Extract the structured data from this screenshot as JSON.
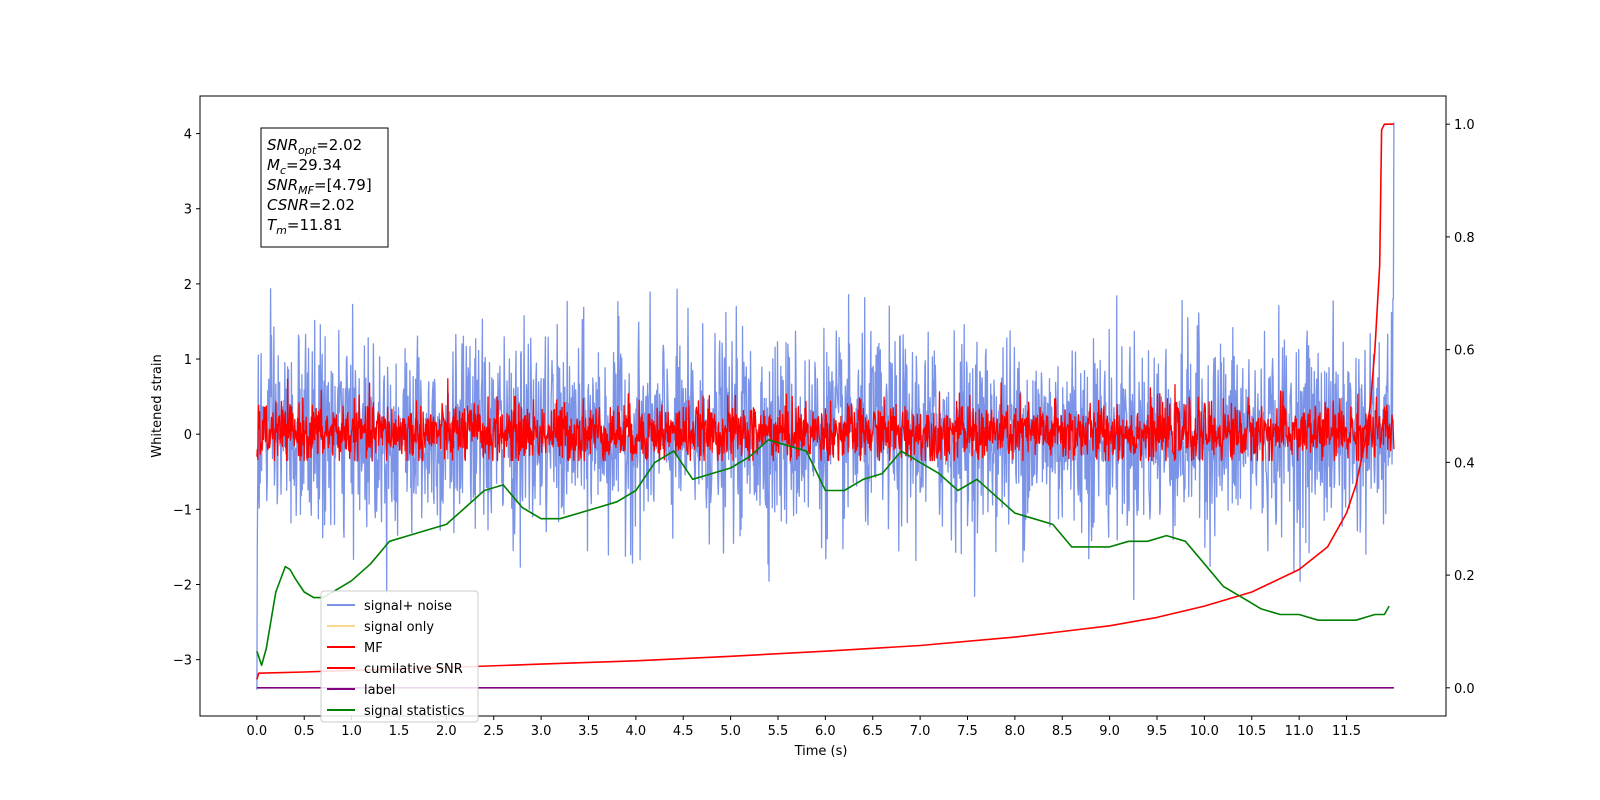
{
  "chart_data": {
    "type": "line",
    "xlabel": "Time (s)",
    "ylabel": "Whitened strain",
    "xlim": [
      -0.6,
      12.55
    ],
    "ylim": [
      -3.75,
      4.5
    ],
    "y2lim": [
      -0.05,
      1.05
    ],
    "xticks": [
      "0.0",
      "0.5",
      "1.0",
      "1.5",
      "2.0",
      "2.5",
      "3.0",
      "3.5",
      "4.0",
      "4.5",
      "5.0",
      "5.5",
      "6.0",
      "6.5",
      "7.0",
      "7.5",
      "8.0",
      "8.5",
      "9.0",
      "9.5",
      "10.0",
      "10.5",
      "11.0",
      "11.5"
    ],
    "yticks": [
      "−3",
      "−2",
      "−1",
      "0",
      "1",
      "2",
      "3",
      "4"
    ],
    "y2ticks": [
      "0.0",
      "0.2",
      "0.4",
      "0.6",
      "0.8",
      "1.0"
    ],
    "stats_box": [
      {
        "sym": "SNR",
        "sub": "opt",
        "value": "=2.02"
      },
      {
        "sym": "M",
        "sub": "c",
        "value": "=29.34"
      },
      {
        "sym": "SNR",
        "sub": "MF",
        "value": "=[4.79]"
      },
      {
        "sym": "CSNR",
        "sub": "",
        "value": "=2.02"
      },
      {
        "sym": "T",
        "sub": "m",
        "value": "=11.81"
      }
    ],
    "legend": {
      "placement": "lower-left",
      "entries": [
        {
          "label": "signal+ noise",
          "color": "#7b94e8"
        },
        {
          "label": "signal only",
          "color": "#f9d78c"
        },
        {
          "label": "MF",
          "color": "#ff0000"
        },
        {
          "label": "cumilative SNR",
          "color": "#ff0000"
        },
        {
          "label": "label",
          "color": "#800080"
        },
        {
          "label": "signal statistics",
          "color": "#008000"
        }
      ]
    },
    "series": [
      {
        "name": "signal+ noise",
        "axis": "left",
        "color": "#7b94e8",
        "pattern": "noise",
        "t_range": [
          0,
          12
        ],
        "approx_std": 0.65,
        "end_spike": 4.15
      },
      {
        "name": "MF",
        "axis": "left",
        "color": "#ff0000",
        "pattern": "noise",
        "t_range": [
          0,
          12
        ],
        "approx_std": 0.2,
        "start_value": -0.3
      },
      {
        "name": "cumilative SNR",
        "axis": "right",
        "color": "#ff0000",
        "x": [
          0.0,
          0.02,
          0.5,
          1.0,
          2.0,
          3.0,
          4.0,
          5.0,
          6.0,
          7.0,
          8.0,
          8.5,
          9.0,
          9.5,
          10.0,
          10.5,
          11.0,
          11.3,
          11.5,
          11.6,
          11.7,
          11.75,
          11.8,
          11.85,
          11.87,
          11.9,
          11.95,
          12.0
        ],
        "values": [
          0.015,
          0.026,
          0.028,
          0.031,
          0.036,
          0.042,
          0.048,
          0.056,
          0.065,
          0.075,
          0.09,
          0.1,
          0.11,
          0.125,
          0.145,
          0.17,
          0.21,
          0.25,
          0.31,
          0.36,
          0.44,
          0.5,
          0.6,
          0.75,
          0.99,
          1.0,
          1.0,
          1.0
        ]
      },
      {
        "name": "label",
        "axis": "right",
        "color": "#800080",
        "x": [
          0,
          12
        ],
        "values": [
          0.0,
          0.0
        ]
      },
      {
        "name": "signal statistics",
        "axis": "right",
        "color": "#008000",
        "x": [
          0.0,
          0.05,
          0.1,
          0.2,
          0.3,
          0.35,
          0.4,
          0.5,
          0.6,
          0.7,
          0.8,
          0.9,
          1.0,
          1.2,
          1.4,
          1.6,
          1.8,
          2.0,
          2.2,
          2.4,
          2.6,
          2.8,
          3.0,
          3.2,
          3.4,
          3.6,
          3.8,
          4.0,
          4.2,
          4.4,
          4.6,
          4.8,
          5.0,
          5.2,
          5.4,
          5.6,
          5.8,
          6.0,
          6.2,
          6.4,
          6.6,
          6.8,
          7.0,
          7.2,
          7.4,
          7.6,
          7.8,
          8.0,
          8.2,
          8.4,
          8.6,
          8.8,
          9.0,
          9.2,
          9.4,
          9.6,
          9.8,
          10.0,
          10.2,
          10.4,
          10.6,
          10.8,
          11.0,
          11.2,
          11.4,
          11.6,
          11.8,
          11.9,
          11.95
        ],
        "values": [
          0.065,
          0.04,
          0.07,
          0.17,
          0.215,
          0.21,
          0.195,
          0.17,
          0.16,
          0.16,
          0.17,
          0.18,
          0.19,
          0.22,
          0.26,
          0.27,
          0.28,
          0.29,
          0.32,
          0.35,
          0.36,
          0.32,
          0.3,
          0.3,
          0.31,
          0.32,
          0.33,
          0.35,
          0.4,
          0.42,
          0.37,
          0.38,
          0.39,
          0.41,
          0.44,
          0.43,
          0.42,
          0.35,
          0.35,
          0.37,
          0.38,
          0.42,
          0.4,
          0.38,
          0.35,
          0.37,
          0.34,
          0.31,
          0.3,
          0.29,
          0.25,
          0.25,
          0.25,
          0.26,
          0.26,
          0.27,
          0.26,
          0.22,
          0.18,
          0.16,
          0.14,
          0.13,
          0.13,
          0.12,
          0.12,
          0.12,
          0.13,
          0.13,
          0.145
        ]
      }
    ]
  }
}
